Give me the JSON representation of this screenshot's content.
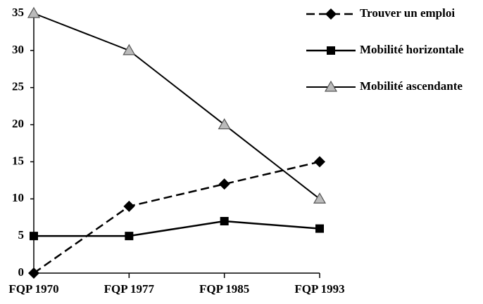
{
  "chart_data": {
    "type": "line",
    "categories": [
      "FQP 1970",
      "FQP 1977",
      "FQP 1985",
      "FQP 1993"
    ],
    "series": [
      {
        "name": "Trouver un emploi",
        "color": "#000000",
        "dash": true,
        "marker": "diamond",
        "values": [
          0,
          9,
          12,
          15
        ]
      },
      {
        "name": "Mobilité horizontale",
        "color": "#000000",
        "dash": false,
        "marker": "square",
        "values": [
          5,
          5,
          7,
          6
        ]
      },
      {
        "name": "Mobilité ascendante",
        "color": "#000000",
        "dash": false,
        "marker": "triangle",
        "values": [
          35,
          30,
          20,
          10
        ]
      }
    ],
    "ylim": [
      0,
      35
    ],
    "yticks": [
      0,
      5,
      10,
      15,
      20,
      25,
      30,
      35
    ],
    "grid": false,
    "legend": "right"
  }
}
